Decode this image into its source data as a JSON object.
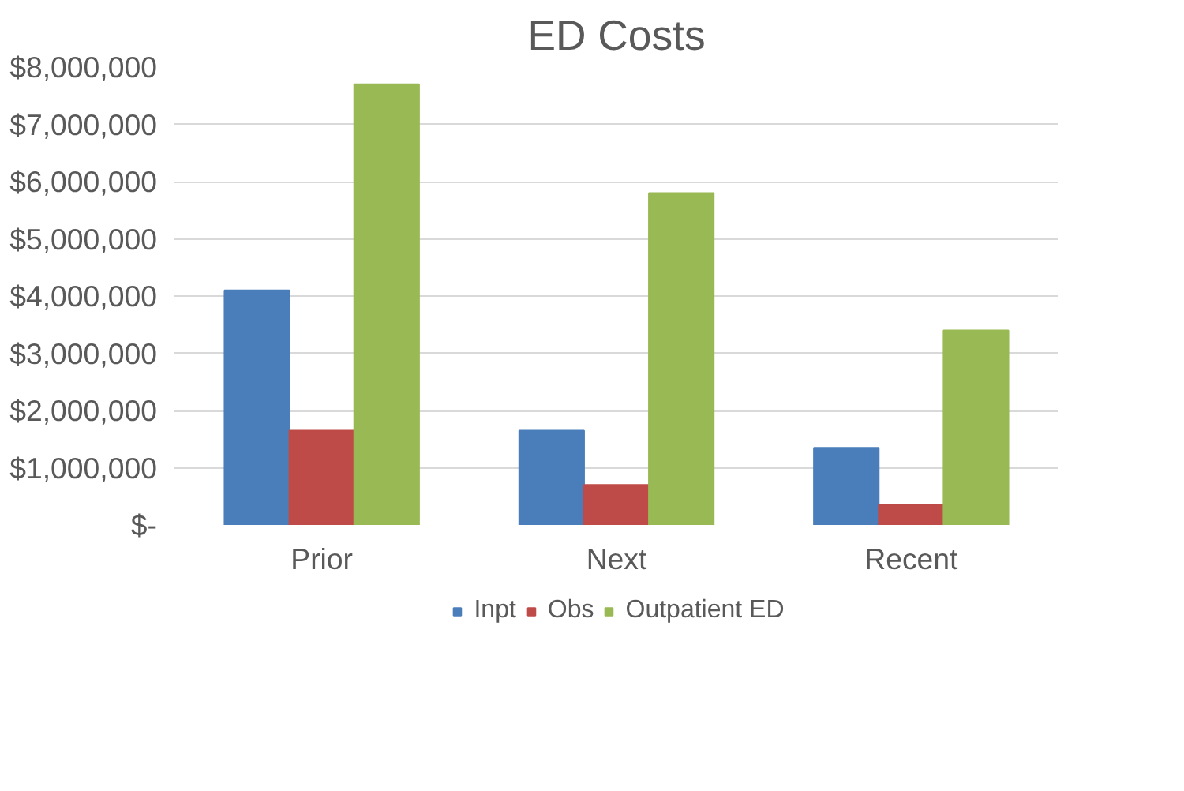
{
  "chart_data": {
    "type": "bar",
    "title": "ED Costs",
    "categories": [
      "Prior",
      "Next",
      "Recent"
    ],
    "series": [
      {
        "name": "Inpt",
        "color": "#4a7ebb",
        "values": [
          4100000,
          1650000,
          1350000
        ]
      },
      {
        "name": "Obs",
        "color": "#be4b48",
        "values": [
          1650000,
          700000,
          350000
        ]
      },
      {
        "name": "Outpatient ED",
        "color": "#98b954",
        "values": [
          7700000,
          5800000,
          3400000
        ]
      }
    ],
    "ylim": [
      0,
      8000000
    ],
    "yticks": [
      {
        "value": 0,
        "label": "$-"
      },
      {
        "value": 1000000,
        "label": "$1,000,000"
      },
      {
        "value": 2000000,
        "label": "$2,000,000"
      },
      {
        "value": 3000000,
        "label": "$3,000,000"
      },
      {
        "value": 4000000,
        "label": "$4,000,000"
      },
      {
        "value": 5000000,
        "label": "$5,000,000"
      },
      {
        "value": 6000000,
        "label": "$6,000,000"
      },
      {
        "value": 7000000,
        "label": "$7,000,000"
      },
      {
        "value": 8000000,
        "label": "$8,000,000"
      }
    ],
    "grid": "y",
    "legend": "bottom"
  }
}
